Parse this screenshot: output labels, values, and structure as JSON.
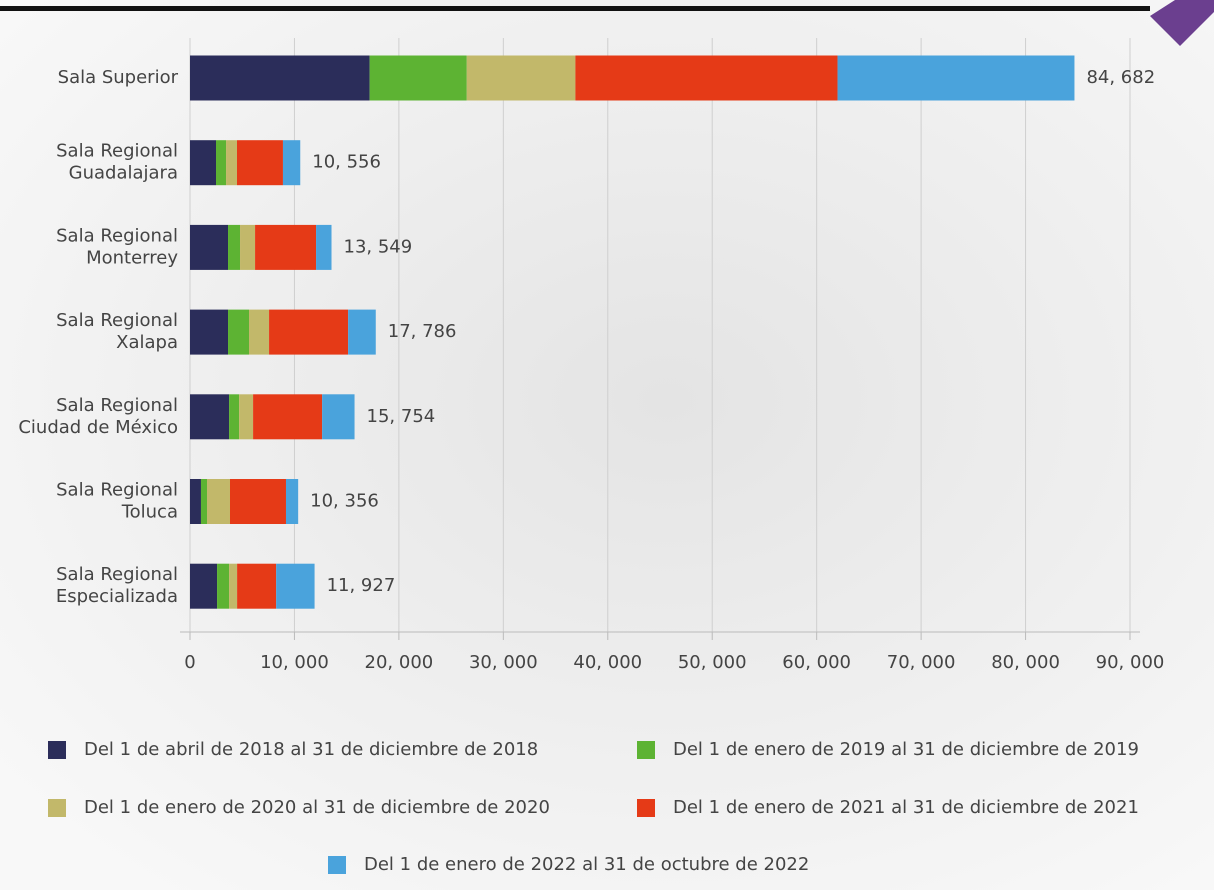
{
  "chart_data": {
    "type": "stacked-barh",
    "categories": [
      [
        "Sala Superior"
      ],
      [
        "Sala Regional",
        "Guadalajara"
      ],
      [
        "Sala Regional",
        "Monterrey"
      ],
      [
        "Sala Regional",
        "Xalapa"
      ],
      [
        "Sala Regional",
        "Ciudad de México"
      ],
      [
        "Sala Regional",
        "Toluca"
      ],
      [
        "Sala Regional",
        "Especializada"
      ]
    ],
    "series": [
      {
        "name": "Del 1 de abril de 2018 al 31 de diciembre de 2018",
        "color": "#2b2d5a",
        "values": [
          17200,
          2490,
          3640,
          3640,
          3740,
          1050,
          2590
        ]
      },
      {
        "name": "Del 1 de enero de 2019 al 31 de diciembre de 2019",
        "color": "#5db333",
        "values": [
          9300,
          960,
          1150,
          2010,
          960,
          580,
          1150
        ]
      },
      {
        "name": "Del 1 de enero de 2020 al 31 de diciembre de 2020",
        "color": "#c2b86a",
        "values": [
          10400,
          1050,
          1440,
          1920,
          1340,
          2200,
          770
        ]
      },
      {
        "name": "Del 1 de enero de 2021 al 31 de diciembre de 2021",
        "color": "#e53a17",
        "values": [
          25100,
          4400,
          5840,
          7570,
          6610,
          5360,
          3740
        ]
      },
      {
        "name": "Del 1 de enero de 2022 al 31 de octubre de 2022",
        "color": "#4aa3dc",
        "values": [
          22682,
          1656,
          1479,
          2646,
          3104,
          1166,
          3677
        ]
      }
    ],
    "totals": [
      84682,
      10556,
      13549,
      17786,
      15754,
      10356,
      11927
    ],
    "total_labels": [
      "84, 682",
      "10, 556",
      "13, 549",
      "17, 786",
      "15, 754",
      "10, 356",
      "11, 927"
    ],
    "xlim": [
      0,
      90000
    ],
    "xticks": [
      0,
      {
        "value": 10000,
        "label": "10, 000"
      },
      {
        "value": 20000,
        "label": "20, 000"
      },
      {
        "value": 30000,
        "label": "30, 000"
      },
      {
        "value": 40000,
        "label": "40, 000"
      },
      {
        "value": 50000,
        "label": "50, 000"
      },
      {
        "value": 60000,
        "label": "60, 000"
      },
      {
        "value": 70000,
        "label": "70, 000"
      },
      {
        "value": 80000,
        "label": "80, 000"
      },
      {
        "value": 90000,
        "label": "90, 000"
      }
    ],
    "grid": true
  }
}
